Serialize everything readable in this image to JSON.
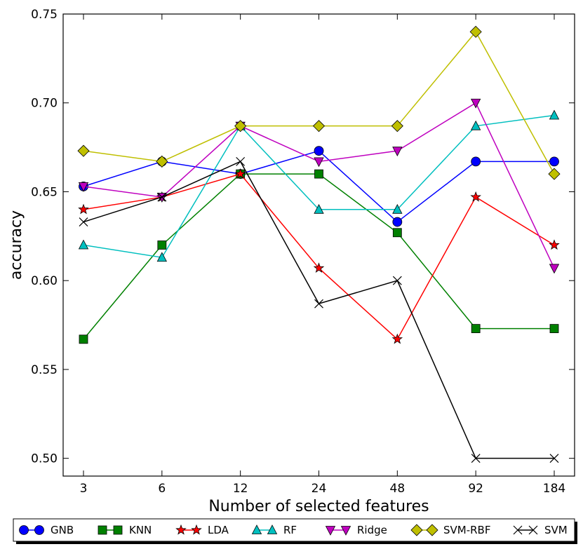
{
  "chart_data": {
    "type": "line",
    "xlabel": "Number of selected features",
    "ylabel": "accuracy",
    "categories": [
      "3",
      "6",
      "12",
      "24",
      "48",
      "92",
      "184"
    ],
    "ylim": [
      0.49,
      0.75
    ],
    "yticks": [
      "0.50",
      "0.55",
      "0.60",
      "0.65",
      "0.70",
      "0.75"
    ],
    "ytick_values": [
      0.5,
      0.55,
      0.6,
      0.65,
      0.7,
      0.75
    ],
    "legend_position": "bottom",
    "series": [
      {
        "name": "GNB",
        "color": "#0000ff",
        "marker": "circle",
        "values": [
          0.653,
          0.667,
          0.66,
          0.673,
          0.633,
          0.667,
          0.667
        ]
      },
      {
        "name": "KNN",
        "color": "#008000",
        "marker": "square",
        "values": [
          0.567,
          0.62,
          0.66,
          0.66,
          0.627,
          0.573,
          0.573
        ]
      },
      {
        "name": "LDA",
        "color": "#ff0000",
        "marker": "star",
        "values": [
          0.64,
          0.647,
          0.66,
          0.607,
          0.567,
          0.647,
          0.62
        ]
      },
      {
        "name": "RF",
        "color": "#00bfbf",
        "marker": "triangle-up",
        "values": [
          0.62,
          0.613,
          0.687,
          0.64,
          0.64,
          0.687,
          0.693
        ]
      },
      {
        "name": "Ridge",
        "color": "#bf00bf",
        "marker": "triangle-down",
        "values": [
          0.653,
          0.647,
          0.687,
          0.667,
          0.673,
          0.7,
          0.607
        ]
      },
      {
        "name": "SVM-RBF",
        "color": "#bfbf00",
        "marker": "diamond",
        "values": [
          0.673,
          0.667,
          0.687,
          0.687,
          0.687,
          0.74,
          0.66
        ]
      },
      {
        "name": "SVM",
        "color": "#000000",
        "marker": "x",
        "values": [
          0.633,
          0.647,
          0.667,
          0.587,
          0.6,
          0.5,
          0.5
        ]
      }
    ]
  }
}
